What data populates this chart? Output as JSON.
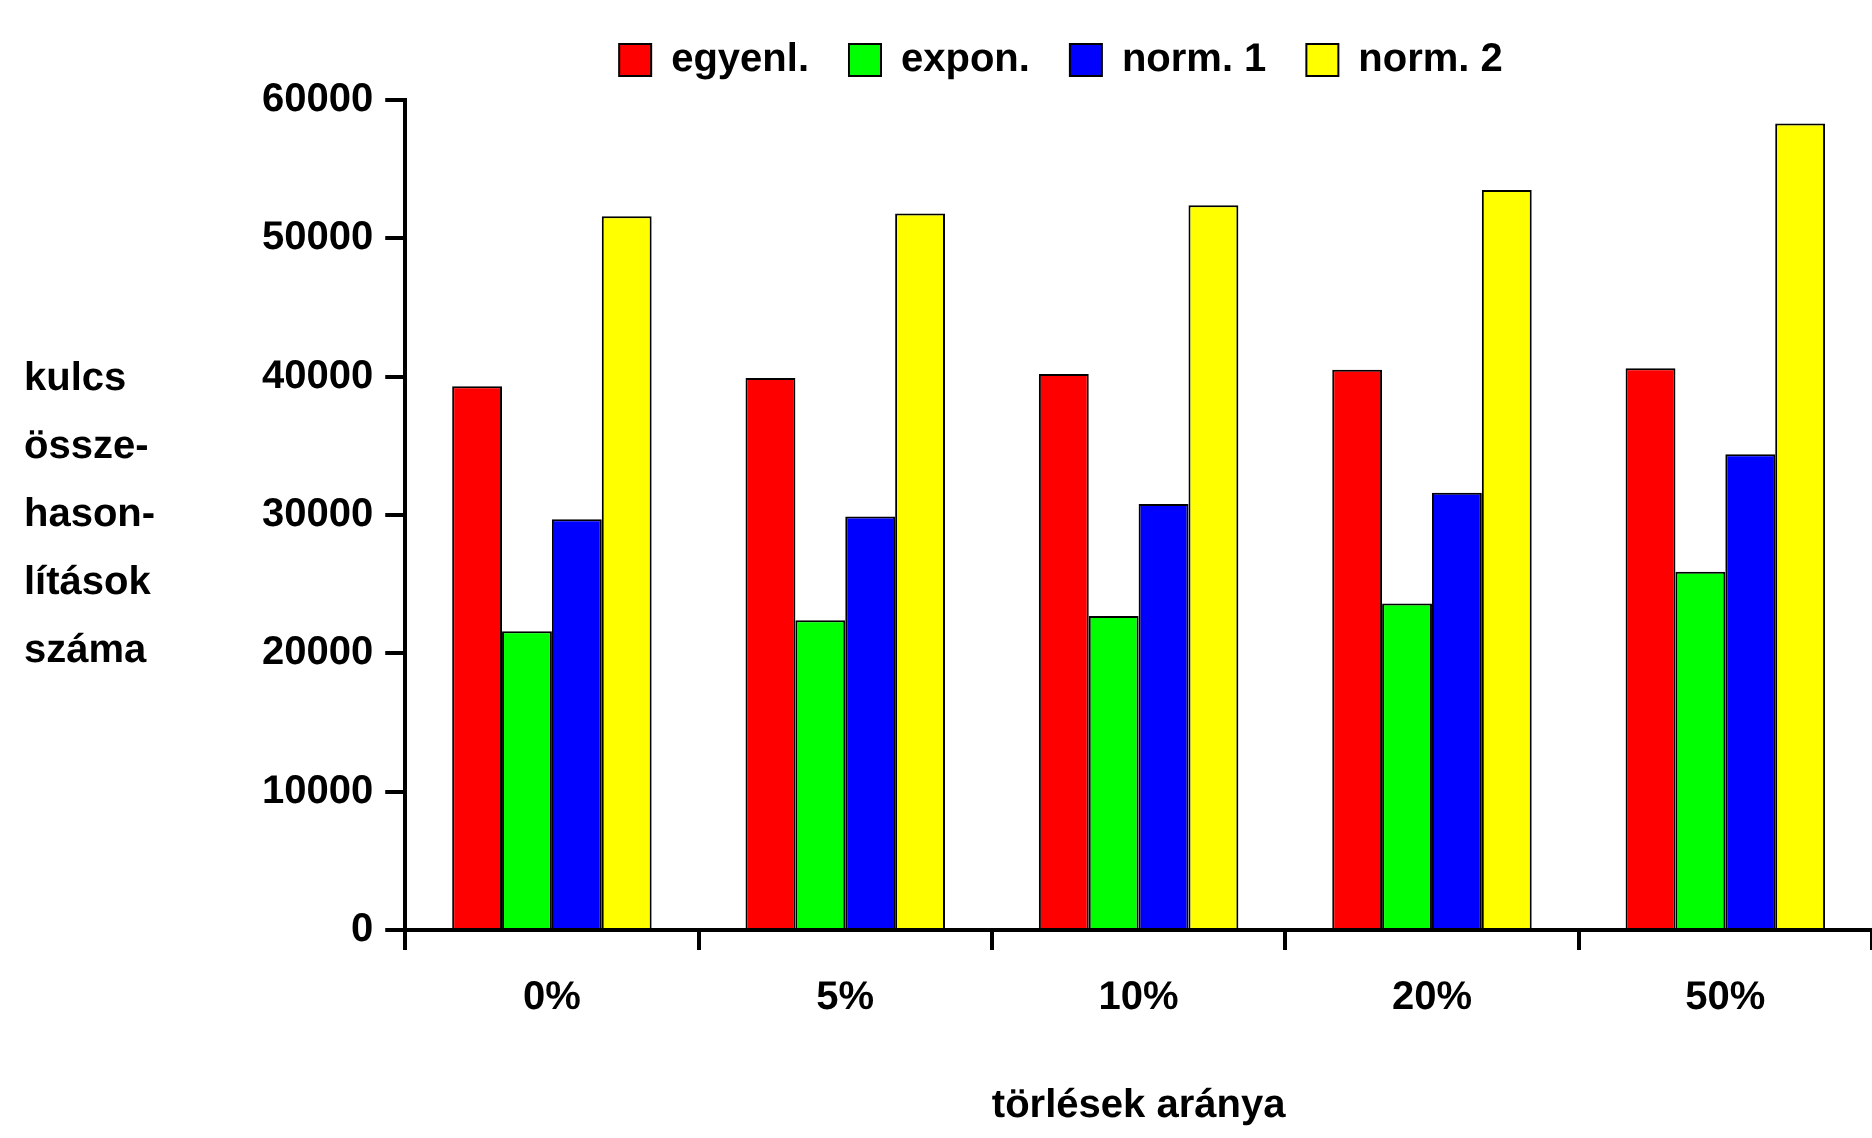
{
  "chart_data": {
    "type": "bar",
    "xlabel": "törlések aránya",
    "ylabel": "kulcs\nössze-\nhason-\nlítások\nszáma",
    "categories": [
      "0%",
      "5%",
      "10%",
      "20%",
      "50%"
    ],
    "series": [
      {
        "name": "egyenl.",
        "color": "#ff0000",
        "values": [
          39300,
          39900,
          40200,
          40500,
          40600
        ]
      },
      {
        "name": "expon.",
        "color": "#00ff00",
        "values": [
          21600,
          22400,
          22700,
          23600,
          25900
        ]
      },
      {
        "name": "norm. 1",
        "color": "#0000ff",
        "values": [
          29700,
          29900,
          30800,
          31600,
          34400
        ]
      },
      {
        "name": "norm. 2",
        "color": "#ffff00",
        "values": [
          51600,
          51800,
          52400,
          53500,
          58300
        ]
      }
    ],
    "ylim": [
      0,
      60000
    ],
    "yticks": [
      0,
      10000,
      20000,
      30000,
      40000,
      50000,
      60000
    ],
    "grid": false,
    "legend": "top"
  }
}
